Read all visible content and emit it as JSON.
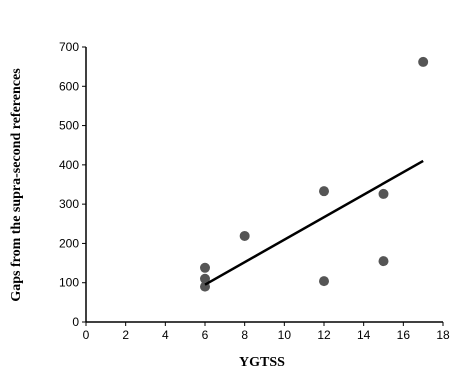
{
  "chart_data": {
    "type": "scatter",
    "x_label": "YGTSS",
    "y_label": "Gaps from the supra-second references",
    "x": [
      6,
      6,
      6,
      8,
      12,
      12,
      15,
      15,
      17
    ],
    "values": [
      138,
      110,
      90,
      219,
      333,
      104,
      326,
      155,
      662
    ],
    "color": "#555555",
    "trendline": {
      "x": [
        6,
        17
      ],
      "values": [
        95,
        410
      ],
      "color": "#000000"
    },
    "xlim": [
      0,
      18
    ],
    "xticks": [
      0,
      2,
      4,
      6,
      8,
      10,
      12,
      14,
      16,
      18
    ],
    "ylim": [
      0,
      700
    ],
    "yticks": [
      0,
      100,
      200,
      300,
      400,
      500,
      600,
      700
    ],
    "grid": false
  }
}
